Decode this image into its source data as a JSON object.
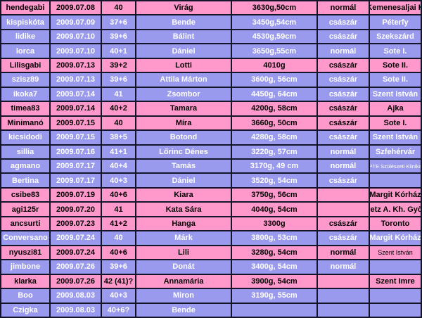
{
  "table": {
    "description_columns": [
      "username",
      "date",
      "gestation_weeks",
      "baby_name",
      "weight_length",
      "birth_type",
      "hospital"
    ],
    "colors": {
      "pink_row": "#ff99cc",
      "purple_row": "#9999ee",
      "grid_border": "#14142b",
      "pink_row_text": "#000000",
      "purple_row_text": "#ffffff"
    },
    "rows": [
      {
        "user": "hendegabi",
        "date": "2009.07.08",
        "weeks": "40",
        "name": "Virág",
        "weight": "3630g,50cm",
        "type": "normál",
        "hospital": "Kemenesaljai K",
        "tone": "pink"
      },
      {
        "user": "kispiskóta",
        "date": "2009.07.09",
        "weeks": "37+6",
        "name": "Bende",
        "weight": "3450g,54cm",
        "type": "császár",
        "hospital": "Péterfy",
        "tone": "purple"
      },
      {
        "user": "lidike",
        "date": "2009.07.10",
        "weeks": "39+6",
        "name": "Bálint",
        "weight": "4530g,59cm",
        "type": "császár",
        "hospital": "Szekszárd",
        "tone": "purple"
      },
      {
        "user": "lorca",
        "date": "2009.07.10",
        "weeks": "40+1",
        "name": "Dániel",
        "weight": "3650g,55cm",
        "type": "normál",
        "hospital": "Sote I.",
        "tone": "purple"
      },
      {
        "user": "Lilisgabi",
        "date": "2009.07.13",
        "weeks": "39+2",
        "name": "Lotti",
        "weight": "4010g",
        "type": "császár",
        "hospital": "Sote II.",
        "tone": "pink"
      },
      {
        "user": "szisz89",
        "date": "2009.07.13",
        "weeks": "39+6",
        "name": "Attila Márton",
        "weight": "3600g, 56cm",
        "type": "császár",
        "hospital": "Sote II.",
        "tone": "purple"
      },
      {
        "user": "ikoka7",
        "date": "2009.07.14",
        "weeks": "41",
        "name": "Zsombor",
        "weight": "4450g, 64cm",
        "type": "császár",
        "hospital": "Szent István",
        "tone": "purple"
      },
      {
        "user": "timea83",
        "date": "2009.07.14",
        "weeks": "40+2",
        "name": "Tamara",
        "weight": "4200g, 58cm",
        "type": "császár",
        "hospital": "Ajka",
        "tone": "pink"
      },
      {
        "user": "Minimanó",
        "date": "2009.07.15",
        "weeks": "40",
        "name": "Míra",
        "weight": "3660g, 50cm",
        "type": "császár",
        "hospital": "Sote I.",
        "tone": "pink"
      },
      {
        "user": "kicsidodi",
        "date": "2009.07.15",
        "weeks": "38+5",
        "name": "Botond",
        "weight": "4280g, 58cm",
        "type": "császár",
        "hospital": "Szent István",
        "tone": "purple"
      },
      {
        "user": "sillia",
        "date": "2009.07.16",
        "weeks": "41+1",
        "name": "Lőrinc Dénes",
        "weight": "3220g, 57cm",
        "type": "normál",
        "hospital": "Szfehérvár",
        "tone": "purple"
      },
      {
        "user": "agmano",
        "date": "2009.07.17",
        "weeks": "40+4",
        "name": "Tamás",
        "weight": "3170g, 49 cm",
        "type": "normál",
        "hospital": "PTE Szülészeti Klinika",
        "tone": "purple",
        "hospital_size": "xs"
      },
      {
        "user": "Bertina",
        "date": "2009.07.17",
        "weeks": "40+3",
        "name": "Dániel",
        "weight": "3520g, 54cm",
        "type": "császár",
        "hospital": "",
        "tone": "purple"
      },
      {
        "user": "csibe83",
        "date": "2009.07.19",
        "weeks": "40+6",
        "name": "Kiara",
        "weight": "3750g, 56cm",
        "type": "",
        "hospital": "Margit Kórház",
        "tone": "pink"
      },
      {
        "user": "agi125r",
        "date": "2009.07.20",
        "weeks": "41",
        "name": "Kata Sára",
        "weight": "4040g, 54cm",
        "type": "",
        "hospital": "Petz A. Kh. Győr",
        "tone": "pink"
      },
      {
        "user": "ancsurti",
        "date": "2009.07.23",
        "weeks": "41+2",
        "name": "Hanga",
        "weight": "3300g",
        "type": "császár",
        "hospital": "Toronto",
        "tone": "pink"
      },
      {
        "user": "Conversano",
        "date": "2009.07.24",
        "weeks": "40",
        "name": "Márk",
        "weight": "3800g, 53cm",
        "type": "császár",
        "hospital": "Margit Kórház",
        "tone": "purple"
      },
      {
        "user": "nyuszi81",
        "date": "2009.07.24",
        "weeks": "40+6",
        "name": "Lili",
        "weight": "3280g, 54cm",
        "type": "normál",
        "hospital": "Szent István",
        "tone": "pink",
        "hospital_size": "sm"
      },
      {
        "user": "jimbone",
        "date": "2009.07.26",
        "weeks": "39+6",
        "name": "Donát",
        "weight": "3400g, 54cm",
        "type": "normál",
        "hospital": "",
        "tone": "purple"
      },
      {
        "user": "klarka",
        "date": "2009.07.26",
        "weeks": "42 (41)?",
        "name": "Annamária",
        "weight": "3900g, 54cm",
        "type": "",
        "hospital": "Szent Imre",
        "tone": "pink"
      },
      {
        "user": "Boo",
        "date": "2009.08.03",
        "weeks": "40+3",
        "name": "Miron",
        "weight": "3190g, 55cm",
        "type": "",
        "hospital": "",
        "tone": "purple"
      },
      {
        "user": "Czigka",
        "date": "2009.08.03",
        "weeks": "40+6?",
        "name": "Bende",
        "weight": "",
        "type": "",
        "hospital": "",
        "tone": "purple"
      }
    ]
  }
}
